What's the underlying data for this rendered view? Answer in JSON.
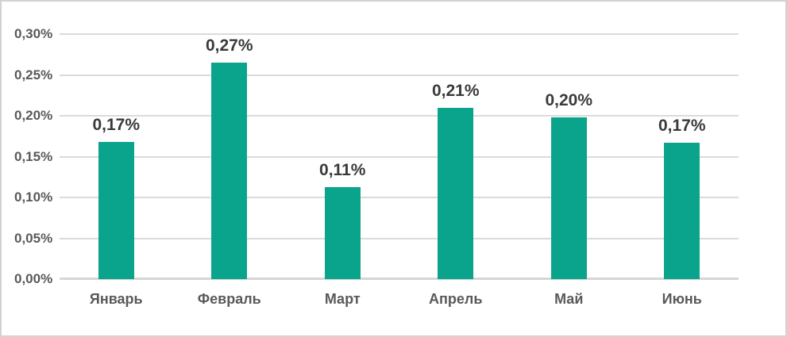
{
  "chart_data": {
    "type": "bar",
    "title": "",
    "xlabel": "",
    "ylabel": "",
    "categories": [
      "Январь",
      "Февраль",
      "Март",
      "Апрель",
      "Май",
      "Июнь"
    ],
    "values": [
      0.168,
      0.265,
      0.113,
      0.21,
      0.198,
      0.167
    ],
    "data_labels": [
      "0,17%",
      "0,27%",
      "0,11%",
      "0,21%",
      "0,20%",
      "0,17%"
    ],
    "y_ticks": [
      "0,30%",
      "0,25%",
      "0,20%",
      "0,15%",
      "0,10%",
      "0,05%",
      "0,00%"
    ],
    "ylim": [
      0,
      0.3
    ],
    "grid": true,
    "legend_position": "none"
  },
  "colors": {
    "bar": "#0aa48c",
    "gridline": "#dbdbdb",
    "axis_line": "#d6d6d6",
    "tick_text": "#595959",
    "data_label_text": "#3a3a3a",
    "background": "#ffffff",
    "frame_border": "#d2d2d2"
  }
}
